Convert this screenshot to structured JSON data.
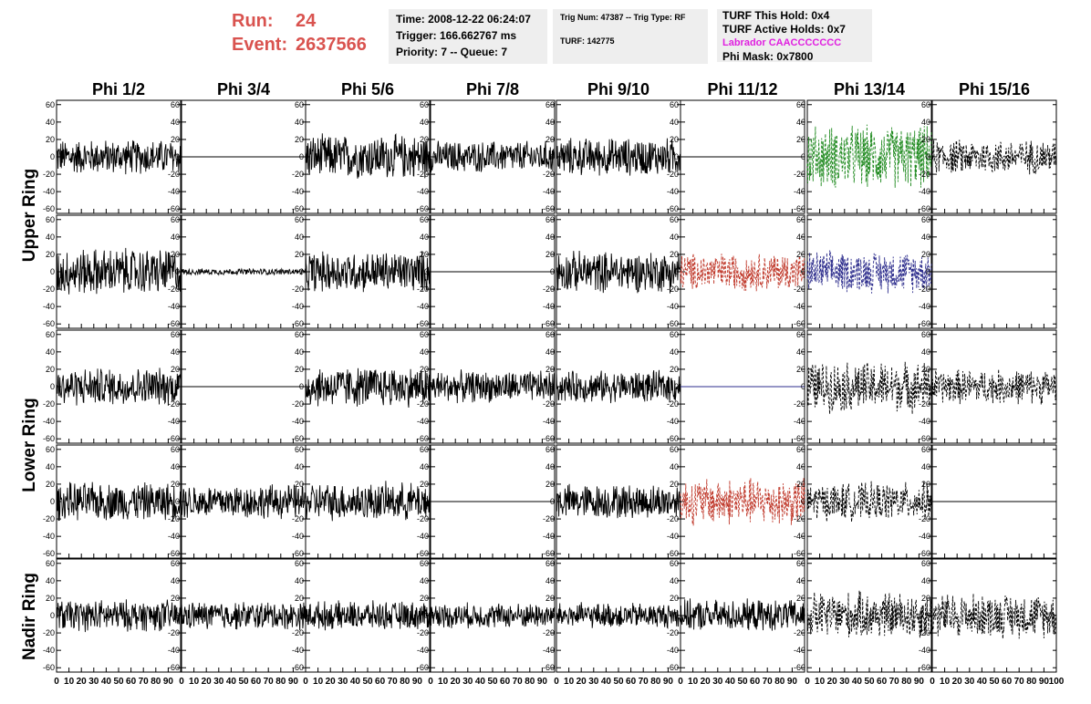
{
  "header": {
    "run_label": "Run:",
    "run_value": "24",
    "event_label": "Event:",
    "event_value": "2637566"
  },
  "info_box_1": {
    "time": "Time: 2008-12-22 06:24:07",
    "trigger": "Trigger: 166.662767 ms",
    "priority": "Priority: 7 -- Queue: 7"
  },
  "info_box_2": {
    "trig": "Trig Num: 47387 -- Trig Type: RF",
    "turf": "TURF: 142775"
  },
  "info_box_3": {
    "this_hold": "TURF This Hold: 0x4",
    "active_holds": "TURF Active Holds: 0x7",
    "labrador": "Labrador CAACCCCCCC",
    "phi_mask": "Phi Mask: 0x7800"
  },
  "colors": {
    "run_text": "#d9534f",
    "labrador_text": "#e01fe0",
    "trace_black": "#000000",
    "trace_green": "#1f8a1f",
    "trace_red": "#c0392b",
    "trace_blue": "#2c2c8c"
  },
  "chart_data": {
    "type": "line",
    "columns": [
      "Phi 1/2",
      "Phi 3/4",
      "Phi 5/6",
      "Phi 7/8",
      "Phi 9/10",
      "Phi 11/12",
      "Phi 13/14",
      "Phi 15/16"
    ],
    "ring_labels": [
      "Upper Ring",
      "Lower Ring",
      "Nadir Ring"
    ],
    "yticks": [
      -60,
      -40,
      -20,
      0,
      20,
      40,
      60
    ],
    "xticks": [
      0,
      10,
      20,
      30,
      40,
      50,
      60,
      70,
      80,
      90,
      100
    ],
    "xlim": [
      0,
      100
    ],
    "ylim": [
      -65,
      65
    ],
    "rows": [
      [
        {
          "style": "solid",
          "color": "black",
          "amp": 22
        },
        {
          "style": "flat",
          "color": "black",
          "amp": 0
        },
        {
          "style": "solid",
          "color": "black",
          "amp": 28
        },
        {
          "style": "solid",
          "color": "black",
          "amp": 20
        },
        {
          "style": "solid",
          "color": "black",
          "amp": 24
        },
        {
          "style": "flat",
          "color": "black",
          "amp": 0
        },
        {
          "style": "dashed",
          "color": "green",
          "amp": 40
        },
        {
          "style": "dashed",
          "color": "black",
          "amp": 22
        }
      ],
      [
        {
          "style": "solid",
          "color": "black",
          "amp": 30
        },
        {
          "style": "solid",
          "color": "black",
          "amp": 4
        },
        {
          "style": "solid",
          "color": "black",
          "amp": 26
        },
        {
          "style": "flat",
          "color": "black",
          "amp": 0
        },
        {
          "style": "solid",
          "color": "black",
          "amp": 26
        },
        {
          "style": "dashed",
          "color": "red",
          "amp": 24
        },
        {
          "style": "dashed",
          "color": "blue",
          "amp": 26
        },
        {
          "style": "flat",
          "color": "black",
          "amp": 0
        }
      ],
      [
        {
          "style": "solid",
          "color": "black",
          "amp": 24
        },
        {
          "style": "flat",
          "color": "black",
          "amp": 0
        },
        {
          "style": "solid",
          "color": "black",
          "amp": 26
        },
        {
          "style": "solid",
          "color": "black",
          "amp": 20
        },
        {
          "style": "solid",
          "color": "black",
          "amp": 20
        },
        {
          "style": "flat",
          "color": "blue",
          "amp": 0
        },
        {
          "style": "dashed",
          "color": "black",
          "amp": 32
        },
        {
          "style": "dashed",
          "color": "black",
          "amp": 22
        }
      ],
      [
        {
          "style": "solid",
          "color": "black",
          "amp": 24
        },
        {
          "style": "solid",
          "color": "black",
          "amp": 22
        },
        {
          "style": "solid",
          "color": "black",
          "amp": 24
        },
        {
          "style": "flat",
          "color": "black",
          "amp": 0
        },
        {
          "style": "solid",
          "color": "black",
          "amp": 22
        },
        {
          "style": "dashed",
          "color": "red",
          "amp": 30
        },
        {
          "style": "dashed",
          "color": "black",
          "amp": 24
        },
        {
          "style": "flat",
          "color": "black",
          "amp": 0
        }
      ],
      [
        {
          "style": "solid",
          "color": "black",
          "amp": 20
        },
        {
          "style": "solid",
          "color": "black",
          "amp": 18
        },
        {
          "style": "solid",
          "color": "black",
          "amp": 18
        },
        {
          "style": "solid",
          "color": "black",
          "amp": 16
        },
        {
          "style": "solid",
          "color": "black",
          "amp": 16
        },
        {
          "style": "solid",
          "color": "black",
          "amp": 20
        },
        {
          "style": "dashed",
          "color": "black",
          "amp": 30
        },
        {
          "style": "dashed",
          "color": "black",
          "amp": 28
        }
      ]
    ]
  }
}
